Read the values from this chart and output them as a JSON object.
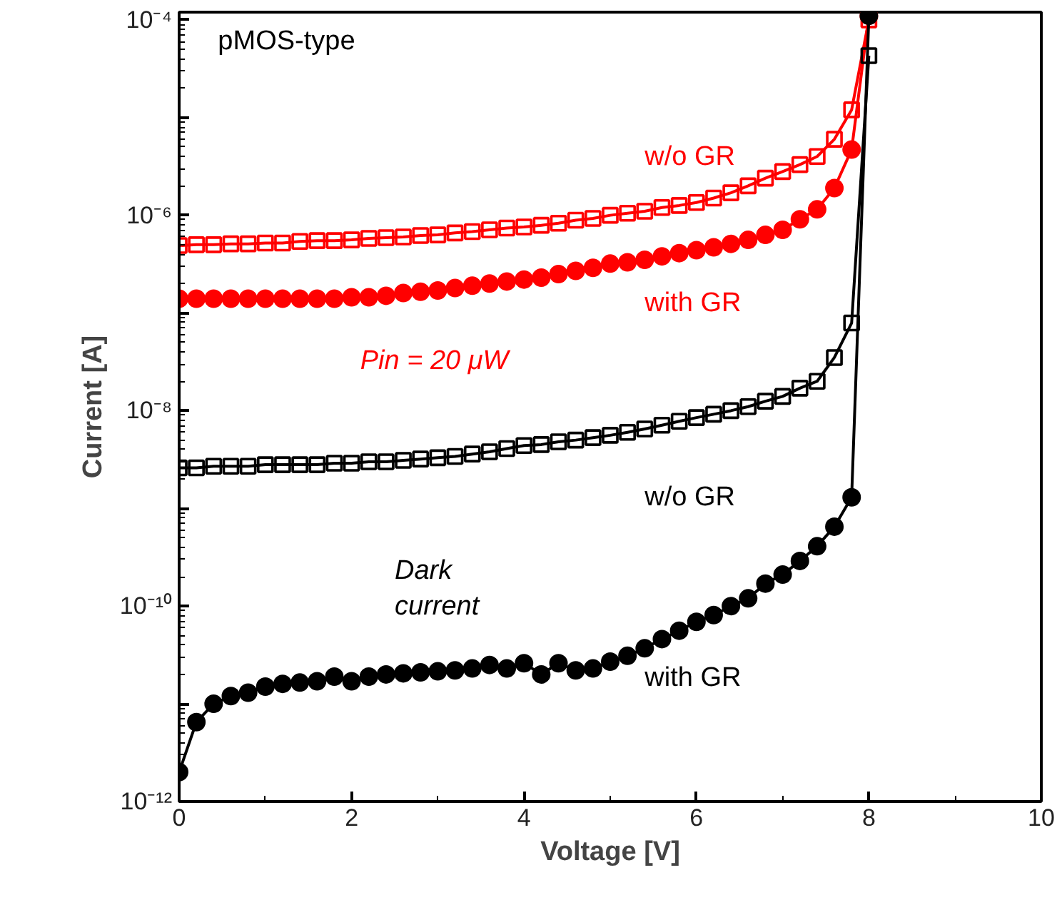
{
  "chart_data": {
    "type": "line",
    "xlabel": "Voltage [V]",
    "ylabel": "Current [A]",
    "log": "y",
    "grid": false,
    "x": [
      0,
      0.2,
      0.4,
      0.6,
      0.8,
      1.0,
      1.2,
      1.4,
      1.6,
      1.8,
      2.0,
      2.2,
      2.4,
      2.6,
      2.8,
      3.0,
      3.2,
      3.4,
      3.6,
      3.8,
      4.0,
      4.2,
      4.4,
      4.6,
      4.8,
      5.0,
      5.2,
      5.4,
      5.6,
      5.8,
      6.0,
      6.2,
      6.4,
      6.6,
      6.8,
      7.0,
      7.2,
      7.4,
      7.6,
      7.8,
      8.0
    ],
    "xlim": [
      0,
      10
    ],
    "xticks": [
      0,
      2,
      4,
      6,
      8,
      10
    ],
    "ylim": [
      1e-12,
      0.00012
    ],
    "yticks": [
      {
        "value": 1e-12,
        "label": "10⁻¹²"
      },
      {
        "value": 1e-11,
        "label": null
      },
      {
        "value": 1e-10,
        "label": "10⁻¹⁰"
      },
      {
        "value": 1e-09,
        "label": null
      },
      {
        "value": 1e-08,
        "label": "10⁻⁸"
      },
      {
        "value": 1e-07,
        "label": null
      },
      {
        "value": 1e-06,
        "label": "10⁻⁶"
      },
      {
        "value": 1e-05,
        "label": null
      },
      {
        "value": 0.0001,
        "label": "10⁻⁴"
      }
    ],
    "series": [
      {
        "name": "w/o GR",
        "color": "#ff0000",
        "marker": "square",
        "values": [
          4.9e-07,
          5e-07,
          5e-07,
          5.1e-07,
          5.1e-07,
          5.2e-07,
          5.2e-07,
          5.4e-07,
          5.5e-07,
          5.5e-07,
          5.6e-07,
          5.8e-07,
          5.9e-07,
          6e-07,
          6.2e-07,
          6.3e-07,
          6.6e-07,
          6.8e-07,
          7.1e-07,
          7.4e-07,
          7.6e-07,
          7.9e-07,
          8.3e-07,
          8.9e-07,
          9.3e-07,
          1e-06,
          1.05e-06,
          1.1e-06,
          1.2e-06,
          1.26e-06,
          1.35e-06,
          1.5e-06,
          1.7e-06,
          2e-06,
          2.4e-06,
          2.8e-06,
          3.3e-06,
          4e-06,
          6e-06,
          1.2e-05,
          0.0001
        ]
      },
      {
        "name": "with GR",
        "color": "#ff0000",
        "marker": "circle",
        "values": [
          1.4e-07,
          1.4e-07,
          1.4e-07,
          1.4e-07,
          1.4e-07,
          1.4e-07,
          1.4e-07,
          1.4e-07,
          1.4e-07,
          1.4e-07,
          1.45e-07,
          1.45e-07,
          1.5e-07,
          1.6e-07,
          1.65e-07,
          1.7e-07,
          1.8e-07,
          1.9e-07,
          2e-07,
          2.1e-07,
          2.2e-07,
          2.3e-07,
          2.5e-07,
          2.7e-07,
          2.9e-07,
          3.2e-07,
          3.3e-07,
          3.5e-07,
          3.8e-07,
          4.1e-07,
          4.4e-07,
          4.7e-07,
          5.1e-07,
          5.6e-07,
          6.3e-07,
          7.1e-07,
          9.1e-07,
          1.15e-06,
          1.9e-06,
          4.7e-06,
          0.00011
        ]
      },
      {
        "name": "w/o GR",
        "color": "#000000",
        "marker": "square",
        "values": [
          2.6e-09,
          2.6e-09,
          2.7e-09,
          2.7e-09,
          2.7e-09,
          2.8e-09,
          2.8e-09,
          2.8e-09,
          2.8e-09,
          2.9e-09,
          2.9e-09,
          3e-09,
          3e-09,
          3.1e-09,
          3.2e-09,
          3.3e-09,
          3.4e-09,
          3.6e-09,
          3.8e-09,
          4.1e-09,
          4.4e-09,
          4.5e-09,
          4.8e-09,
          5e-09,
          5.3e-09,
          5.6e-09,
          6e-09,
          6.5e-09,
          7.1e-09,
          7.8e-09,
          8.5e-09,
          9.2e-09,
          1e-08,
          1.1e-08,
          1.25e-08,
          1.4e-08,
          1.7e-08,
          2e-08,
          3.5e-08,
          7.9e-08,
          4.3e-05
        ]
      },
      {
        "name": "with GR",
        "color": "#000000",
        "marker": "circle",
        "values": [
          2e-12,
          6.5e-12,
          1e-11,
          1.2e-11,
          1.3e-11,
          1.5e-11,
          1.6e-11,
          1.65e-11,
          1.7e-11,
          1.9e-11,
          1.7e-11,
          1.9e-11,
          2e-11,
          2.05e-11,
          2.1e-11,
          2.15e-11,
          2.2e-11,
          2.3e-11,
          2.5e-11,
          2.3e-11,
          2.6e-11,
          2e-11,
          2.6e-11,
          2.2e-11,
          2.3e-11,
          2.7e-11,
          3.1e-11,
          3.7e-11,
          4.6e-11,
          5.6e-11,
          6.9e-11,
          8.1e-11,
          1e-10,
          1.2e-10,
          1.7e-10,
          2.1e-10,
          2.9e-10,
          4.1e-10,
          6.5e-10,
          1.3e-09,
          0.00011
        ]
      }
    ],
    "annotations": [
      "pMOS-type",
      "Pin = 20 μW",
      "Dark current"
    ]
  }
}
